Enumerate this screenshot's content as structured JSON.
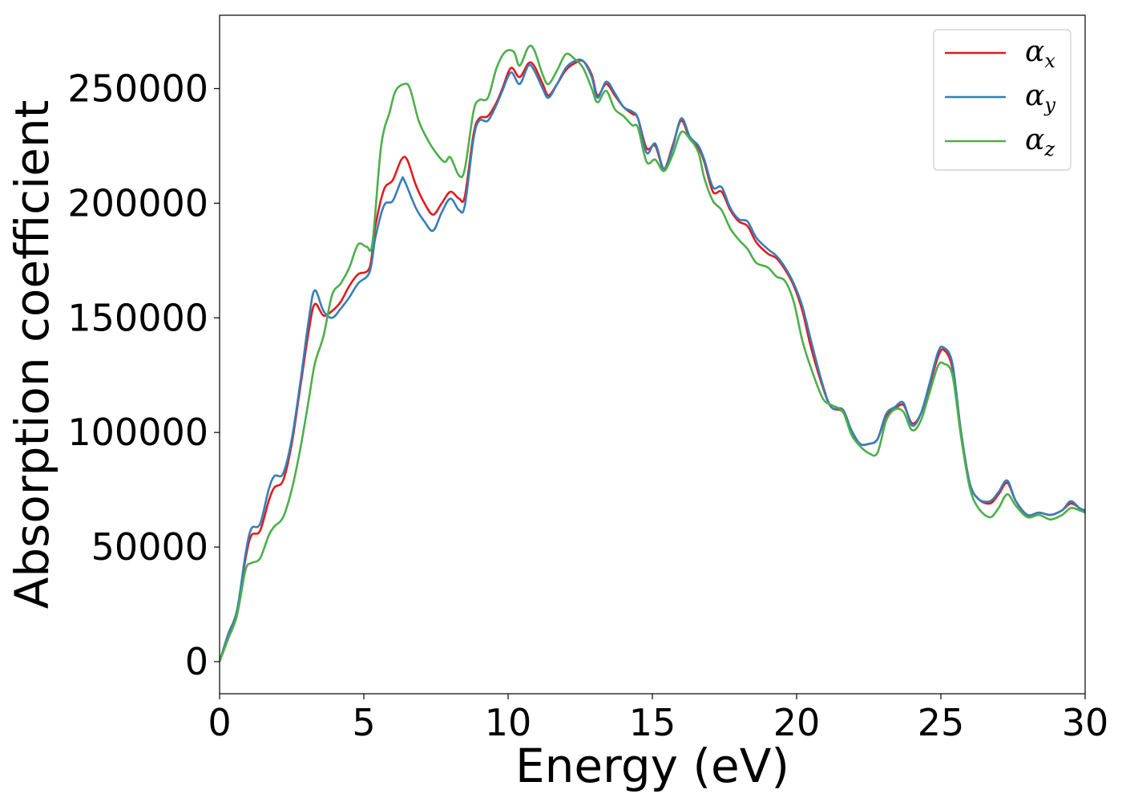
{
  "chart_data": {
    "type": "line",
    "title": "",
    "xlabel": "Energy (eV)",
    "ylabel": "Absorption coefficient",
    "xlim": [
      0,
      30
    ],
    "ylim": [
      -14000,
      282000
    ],
    "xticks": [
      0,
      5,
      10,
      15,
      20,
      25,
      30
    ],
    "yticks": [
      0,
      50000,
      100000,
      150000,
      200000,
      250000
    ],
    "grid": false,
    "legend_position": "top-right",
    "series": [
      {
        "name": "α",
        "subscript": "x",
        "color": "#e41a1c",
        "points": [
          [
            0,
            0
          ],
          [
            0.3,
            12000
          ],
          [
            0.6,
            22000
          ],
          [
            0.9,
            45000
          ],
          [
            1.1,
            55000
          ],
          [
            1.4,
            57000
          ],
          [
            1.7,
            70000
          ],
          [
            1.9,
            76000
          ],
          [
            2.2,
            79000
          ],
          [
            2.5,
            95000
          ],
          [
            2.8,
            120000
          ],
          [
            3.1,
            145000
          ],
          [
            3.3,
            156000
          ],
          [
            3.6,
            151000
          ],
          [
            3.9,
            153000
          ],
          [
            4.2,
            157000
          ],
          [
            4.5,
            164000
          ],
          [
            4.8,
            169000
          ],
          [
            5.2,
            172000
          ],
          [
            5.4,
            190000
          ],
          [
            5.7,
            206000
          ],
          [
            6.0,
            210000
          ],
          [
            6.3,
            219000
          ],
          [
            6.5,
            219000
          ],
          [
            6.8,
            208000
          ],
          [
            7.1,
            200000
          ],
          [
            7.4,
            195000
          ],
          [
            7.7,
            200000
          ],
          [
            8.0,
            205000
          ],
          [
            8.3,
            202000
          ],
          [
            8.5,
            203000
          ],
          [
            8.8,
            230000
          ],
          [
            9.0,
            237000
          ],
          [
            9.3,
            238000
          ],
          [
            9.6,
            244000
          ],
          [
            9.8,
            250000
          ],
          [
            10.1,
            259000
          ],
          [
            10.4,
            255000
          ],
          [
            10.7,
            261000
          ],
          [
            10.9,
            260000
          ],
          [
            11.2,
            252000
          ],
          [
            11.4,
            247000
          ],
          [
            11.7,
            252000
          ],
          [
            12.0,
            258000
          ],
          [
            12.3,
            261000
          ],
          [
            12.6,
            262000
          ],
          [
            12.9,
            256000
          ],
          [
            13.1,
            247000
          ],
          [
            13.4,
            252000
          ],
          [
            13.7,
            247000
          ],
          [
            14.0,
            242000
          ],
          [
            14.3,
            239000
          ],
          [
            14.5,
            237000
          ],
          [
            14.8,
            224000
          ],
          [
            15.1,
            225000
          ],
          [
            15.4,
            215000
          ],
          [
            15.7,
            225000
          ],
          [
            16.0,
            236000
          ],
          [
            16.3,
            228000
          ],
          [
            16.6,
            224000
          ],
          [
            16.8,
            218000
          ],
          [
            17.1,
            205000
          ],
          [
            17.4,
            205000
          ],
          [
            17.7,
            197000
          ],
          [
            18.0,
            192000
          ],
          [
            18.3,
            190000
          ],
          [
            18.6,
            183000
          ],
          [
            19.0,
            178000
          ],
          [
            19.3,
            176000
          ],
          [
            19.6,
            171000
          ],
          [
            19.9,
            164000
          ],
          [
            20.2,
            153000
          ],
          [
            20.5,
            137000
          ],
          [
            20.9,
            120000
          ],
          [
            21.2,
            111000
          ],
          [
            21.6,
            109000
          ],
          [
            21.9,
            100000
          ],
          [
            22.2,
            95000
          ],
          [
            22.5,
            95000
          ],
          [
            22.8,
            97000
          ],
          [
            23.1,
            107000
          ],
          [
            23.4,
            110000
          ],
          [
            23.7,
            112000
          ],
          [
            24.0,
            104000
          ],
          [
            24.3,
            108000
          ],
          [
            24.6,
            120000
          ],
          [
            24.9,
            133000
          ],
          [
            25.1,
            136000
          ],
          [
            25.4,
            128000
          ],
          [
            25.7,
            100000
          ],
          [
            26.0,
            78000
          ],
          [
            26.3,
            71000
          ],
          [
            26.7,
            69000
          ],
          [
            27.0,
            73000
          ],
          [
            27.3,
            78000
          ],
          [
            27.6,
            70000
          ],
          [
            28.0,
            64000
          ],
          [
            28.4,
            65000
          ],
          [
            28.8,
            64000
          ],
          [
            29.2,
            66000
          ],
          [
            29.5,
            69000
          ],
          [
            29.8,
            67000
          ],
          [
            30.0,
            65000
          ]
        ]
      },
      {
        "name": "α",
        "subscript": "y",
        "color": "#377eb8",
        "points": [
          [
            0,
            0
          ],
          [
            0.3,
            12000
          ],
          [
            0.6,
            22000
          ],
          [
            0.9,
            47000
          ],
          [
            1.1,
            58000
          ],
          [
            1.4,
            60000
          ],
          [
            1.7,
            75000
          ],
          [
            1.9,
            81000
          ],
          [
            2.2,
            82000
          ],
          [
            2.5,
            97000
          ],
          [
            2.8,
            122000
          ],
          [
            3.1,
            150000
          ],
          [
            3.3,
            162000
          ],
          [
            3.6,
            153000
          ],
          [
            3.9,
            150000
          ],
          [
            4.2,
            154000
          ],
          [
            4.5,
            159000
          ],
          [
            4.8,
            165000
          ],
          [
            5.2,
            170000
          ],
          [
            5.4,
            185000
          ],
          [
            5.7,
            199000
          ],
          [
            6.0,
            201000
          ],
          [
            6.3,
            210000
          ],
          [
            6.4,
            210000
          ],
          [
            6.8,
            198000
          ],
          [
            7.1,
            192000
          ],
          [
            7.4,
            188000
          ],
          [
            7.7,
            196000
          ],
          [
            8.0,
            202000
          ],
          [
            8.3,
            197000
          ],
          [
            8.5,
            199000
          ],
          [
            8.8,
            228000
          ],
          [
            9.0,
            236000
          ],
          [
            9.3,
            236000
          ],
          [
            9.6,
            243000
          ],
          [
            9.8,
            249000
          ],
          [
            10.1,
            257000
          ],
          [
            10.4,
            252000
          ],
          [
            10.7,
            260000
          ],
          [
            10.9,
            258000
          ],
          [
            11.2,
            250000
          ],
          [
            11.4,
            246000
          ],
          [
            11.7,
            252000
          ],
          [
            12.0,
            259000
          ],
          [
            12.3,
            262000
          ],
          [
            12.6,
            262000
          ],
          [
            12.9,
            255000
          ],
          [
            13.1,
            246000
          ],
          [
            13.4,
            253000
          ],
          [
            13.7,
            248000
          ],
          [
            14.0,
            242000
          ],
          [
            14.3,
            240000
          ],
          [
            14.5,
            237000
          ],
          [
            14.8,
            222000
          ],
          [
            15.1,
            226000
          ],
          [
            15.4,
            215000
          ],
          [
            15.7,
            224000
          ],
          [
            16.0,
            237000
          ],
          [
            16.3,
            229000
          ],
          [
            16.6,
            225000
          ],
          [
            16.8,
            219000
          ],
          [
            17.1,
            207000
          ],
          [
            17.4,
            207000
          ],
          [
            17.7,
            198000
          ],
          [
            18.0,
            193000
          ],
          [
            18.3,
            192000
          ],
          [
            18.6,
            185000
          ],
          [
            19.0,
            180000
          ],
          [
            19.3,
            177000
          ],
          [
            19.6,
            172000
          ],
          [
            19.9,
            165000
          ],
          [
            20.2,
            155000
          ],
          [
            20.5,
            140000
          ],
          [
            20.9,
            121000
          ],
          [
            21.2,
            111000
          ],
          [
            21.6,
            110000
          ],
          [
            21.9,
            101000
          ],
          [
            22.2,
            95000
          ],
          [
            22.5,
            95000
          ],
          [
            22.8,
            97000
          ],
          [
            23.1,
            108000
          ],
          [
            23.4,
            111000
          ],
          [
            23.7,
            113000
          ],
          [
            24.0,
            103000
          ],
          [
            24.3,
            108000
          ],
          [
            24.6,
            121000
          ],
          [
            24.9,
            135000
          ],
          [
            25.1,
            137000
          ],
          [
            25.4,
            130000
          ],
          [
            25.7,
            100000
          ],
          [
            26.0,
            78000
          ],
          [
            26.3,
            71000
          ],
          [
            26.7,
            70000
          ],
          [
            27.0,
            74000
          ],
          [
            27.3,
            79000
          ],
          [
            27.6,
            70000
          ],
          [
            28.0,
            64000
          ],
          [
            28.4,
            65000
          ],
          [
            28.8,
            64000
          ],
          [
            29.2,
            66000
          ],
          [
            29.5,
            70000
          ],
          [
            29.8,
            67000
          ],
          [
            30.0,
            66000
          ]
        ]
      },
      {
        "name": "α",
        "subscript": "z",
        "color": "#4daf4a",
        "points": [
          [
            0,
            0
          ],
          [
            0.3,
            10000
          ],
          [
            0.6,
            20000
          ],
          [
            0.9,
            40000
          ],
          [
            1.1,
            43000
          ],
          [
            1.4,
            45000
          ],
          [
            1.7,
            55000
          ],
          [
            1.9,
            59000
          ],
          [
            2.2,
            63000
          ],
          [
            2.5,
            75000
          ],
          [
            2.8,
            93000
          ],
          [
            3.1,
            115000
          ],
          [
            3.3,
            130000
          ],
          [
            3.6,
            142000
          ],
          [
            3.9,
            160000
          ],
          [
            4.2,
            165000
          ],
          [
            4.5,
            172000
          ],
          [
            4.8,
            182000
          ],
          [
            5.1,
            181000
          ],
          [
            5.3,
            183000
          ],
          [
            5.6,
            225000
          ],
          [
            5.9,
            240000
          ],
          [
            6.1,
            249000
          ],
          [
            6.4,
            252000
          ],
          [
            6.6,
            250000
          ],
          [
            6.9,
            236000
          ],
          [
            7.2,
            228000
          ],
          [
            7.5,
            222000
          ],
          [
            7.8,
            218000
          ],
          [
            8.0,
            220000
          ],
          [
            8.3,
            212000
          ],
          [
            8.5,
            215000
          ],
          [
            8.8,
            240000
          ],
          [
            9.0,
            245000
          ],
          [
            9.3,
            246000
          ],
          [
            9.6,
            259000
          ],
          [
            9.9,
            266000
          ],
          [
            10.2,
            266000
          ],
          [
            10.4,
            260000
          ],
          [
            10.7,
            268000
          ],
          [
            10.9,
            267000
          ],
          [
            11.2,
            256000
          ],
          [
            11.4,
            252000
          ],
          [
            11.7,
            258000
          ],
          [
            12.0,
            265000
          ],
          [
            12.3,
            263000
          ],
          [
            12.6,
            259000
          ],
          [
            12.9,
            250000
          ],
          [
            13.1,
            244000
          ],
          [
            13.4,
            249000
          ],
          [
            13.7,
            241000
          ],
          [
            14.0,
            238000
          ],
          [
            14.3,
            234000
          ],
          [
            14.5,
            233000
          ],
          [
            14.8,
            218000
          ],
          [
            15.1,
            219000
          ],
          [
            15.4,
            214000
          ],
          [
            15.7,
            221000
          ],
          [
            16.0,
            231000
          ],
          [
            16.3,
            228000
          ],
          [
            16.6,
            222000
          ],
          [
            16.8,
            211000
          ],
          [
            17.1,
            201000
          ],
          [
            17.4,
            197000
          ],
          [
            17.7,
            189000
          ],
          [
            18.0,
            184000
          ],
          [
            18.3,
            180000
          ],
          [
            18.6,
            174000
          ],
          [
            19.0,
            172000
          ],
          [
            19.3,
            168000
          ],
          [
            19.6,
            166000
          ],
          [
            19.9,
            157000
          ],
          [
            20.2,
            140000
          ],
          [
            20.5,
            128000
          ],
          [
            20.9,
            115000
          ],
          [
            21.2,
            112000
          ],
          [
            21.6,
            109000
          ],
          [
            21.9,
            99000
          ],
          [
            22.2,
            94000
          ],
          [
            22.5,
            91000
          ],
          [
            22.8,
            91000
          ],
          [
            23.1,
            105000
          ],
          [
            23.4,
            110000
          ],
          [
            23.7,
            109000
          ],
          [
            24.0,
            101000
          ],
          [
            24.3,
            105000
          ],
          [
            24.6,
            117000
          ],
          [
            24.9,
            129000
          ],
          [
            25.1,
            130000
          ],
          [
            25.4,
            125000
          ],
          [
            25.7,
            98000
          ],
          [
            26.0,
            76000
          ],
          [
            26.3,
            67000
          ],
          [
            26.7,
            63000
          ],
          [
            27.0,
            67000
          ],
          [
            27.3,
            73000
          ],
          [
            27.6,
            68000
          ],
          [
            28.0,
            63000
          ],
          [
            28.4,
            64000
          ],
          [
            28.8,
            62000
          ],
          [
            29.2,
            64000
          ],
          [
            29.5,
            67000
          ],
          [
            29.8,
            66000
          ],
          [
            30.0,
            65000
          ]
        ]
      }
    ]
  }
}
